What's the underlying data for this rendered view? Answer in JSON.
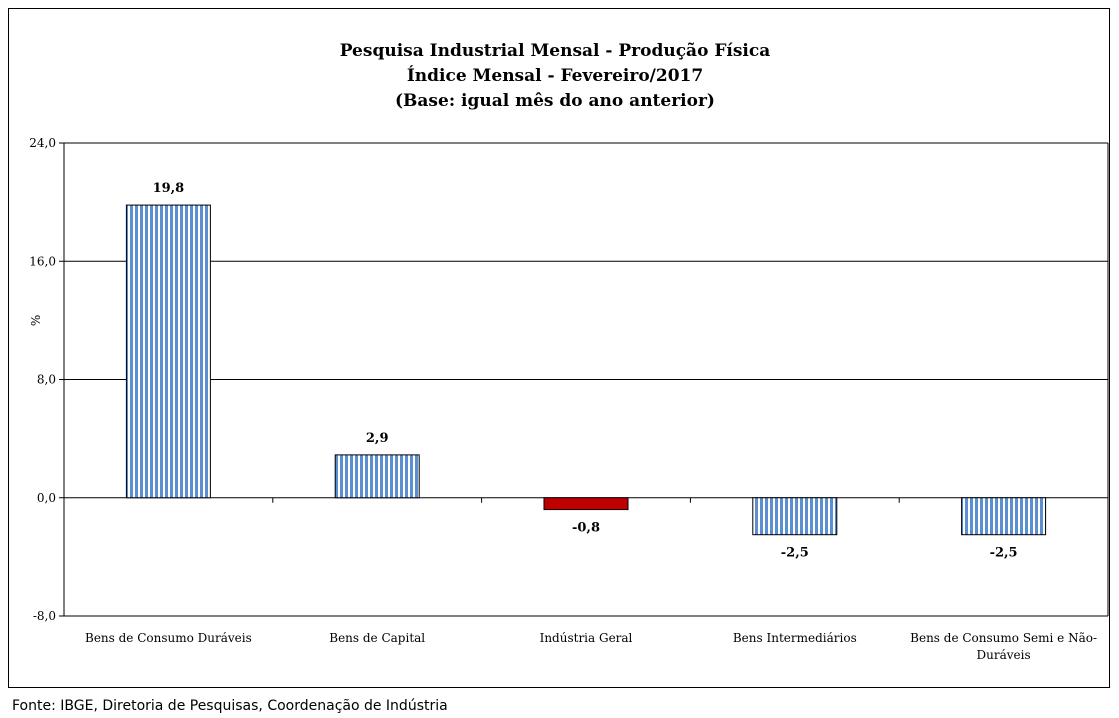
{
  "chart_data": {
    "type": "bar",
    "title": [
      "Pesquisa Industrial Mensal - Produção Física",
      "Índice Mensal - Fevereiro/2017",
      "(Base: igual mês do ano anterior)"
    ],
    "ylabel": "%",
    "ylim": [
      -8,
      24
    ],
    "yticks": [
      "-8,0",
      "0,0",
      "8,0",
      "16,0",
      "24,0"
    ],
    "grid": true,
    "categories": [
      [
        "Bens de Consumo Duráveis"
      ],
      [
        "Bens de Capital"
      ],
      [
        "Indústria Geral"
      ],
      [
        "Bens Intermediários"
      ],
      [
        "Bens de Consumo Semi e Não-",
        "Duráveis"
      ]
    ],
    "values": [
      19.8,
      2.9,
      -0.8,
      -2.5,
      -2.5
    ],
    "value_labels": [
      "19,8",
      "2,9",
      "-0,8",
      "-2,5",
      "-2,5"
    ],
    "bar_styles": [
      "striped",
      "striped",
      "solid",
      "striped",
      "striped"
    ],
    "colors": {
      "stripe_blue": "#5b8fd1",
      "highlight_red": "#c00000",
      "grid": "#000000"
    }
  },
  "source": "Fonte: IBGE, Diretoria de Pesquisas, Coordenação de Indústria"
}
